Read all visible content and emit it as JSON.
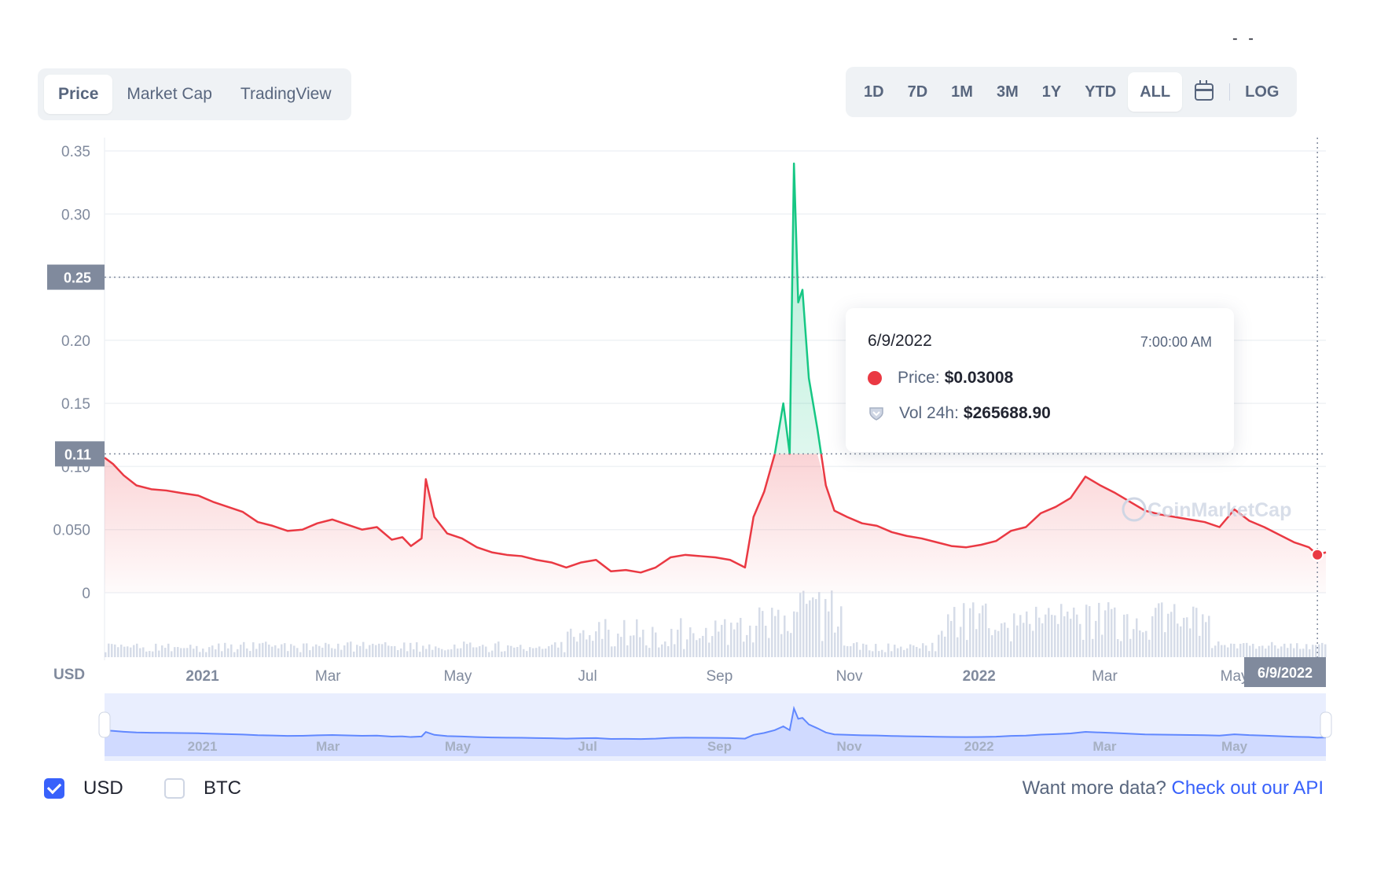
{
  "tabs_left": [
    {
      "label": "Price",
      "active": true
    },
    {
      "label": "Market Cap",
      "active": false
    },
    {
      "label": "TradingView",
      "active": false
    }
  ],
  "tabs_right": [
    {
      "label": "1D"
    },
    {
      "label": "7D"
    },
    {
      "label": "1M"
    },
    {
      "label": "3M"
    },
    {
      "label": "1Y"
    },
    {
      "label": "YTD"
    },
    {
      "label": "ALL",
      "active": true
    }
  ],
  "calendar_icon": "calendar-icon",
  "log_label": "LOG",
  "top_right_text": "- -",
  "tooltip": {
    "date": "6/9/2022",
    "time": "7:00:00 AM",
    "price_label": "Price:",
    "price_value": "$0.03008",
    "vol_label": "Vol 24h:",
    "vol_value": "$265688.90"
  },
  "watermark": "CoinMarketCap",
  "currency_toggle": {
    "usd": "USD",
    "btc": "BTC",
    "usd_checked": true,
    "btc_checked": false
  },
  "api": {
    "text": "Want more data?",
    "link": "Check out our API"
  },
  "colors": {
    "up": "#16c784",
    "down": "#ea3943",
    "accent": "#3861fb",
    "navigator": "#6188ff"
  },
  "chart_data": {
    "type": "line",
    "y_unit_label": "USD",
    "y_ticks": [
      "0.35",
      "0.30",
      "0.25",
      "0.20",
      "0.15",
      "0.10",
      "0.050",
      "0"
    ],
    "ylim": [
      0,
      0.35
    ],
    "x_ticks": [
      "2021",
      "Mar",
      "May",
      "Jul",
      "Sep",
      "Nov",
      "2022",
      "Mar",
      "May"
    ],
    "x_range": [
      "2020-11-16",
      "2022-06-13"
    ],
    "crosshair": {
      "price": "0.25",
      "date": "6/9/2022"
    },
    "reference_line": {
      "price": "0.11"
    },
    "series": [
      {
        "x": [
          "2020-11-16",
          "2020-11-20",
          "2020-11-25",
          "2020-12-01",
          "2020-12-08",
          "2020-12-15",
          "2020-12-22",
          "2020-12-30",
          "2021-01-06",
          "2021-01-13",
          "2021-01-20",
          "2021-01-27",
          "2021-02-03",
          "2021-02-10",
          "2021-02-17",
          "2021-02-24",
          "2021-03-03",
          "2021-03-10",
          "2021-03-17",
          "2021-03-24",
          "2021-03-31",
          "2021-04-05",
          "2021-04-09",
          "2021-04-14",
          "2021-04-16",
          "2021-04-20",
          "2021-04-26",
          "2021-05-03",
          "2021-05-10",
          "2021-05-17",
          "2021-05-24",
          "2021-05-31",
          "2021-06-07",
          "2021-06-14",
          "2021-06-21",
          "2021-06-28",
          "2021-07-05",
          "2021-07-12",
          "2021-07-19",
          "2021-07-26",
          "2021-08-02",
          "2021-08-09",
          "2021-08-16",
          "2021-08-23",
          "2021-08-30",
          "2021-09-06",
          "2021-09-13",
          "2021-09-17",
          "2021-09-22",
          "2021-09-27",
          "2021-10-01",
          "2021-10-04",
          "2021-10-06",
          "2021-10-08",
          "2021-10-10",
          "2021-10-13",
          "2021-10-17",
          "2021-10-21",
          "2021-10-25",
          "2021-10-31",
          "2021-11-07",
          "2021-11-14",
          "2021-11-21",
          "2021-11-28",
          "2021-12-05",
          "2021-12-12",
          "2021-12-19",
          "2021-12-26",
          "2022-01-02",
          "2022-01-09",
          "2022-01-16",
          "2022-01-23",
          "2022-01-30",
          "2022-02-06",
          "2022-02-13",
          "2022-02-20",
          "2022-02-27",
          "2022-03-06",
          "2022-03-13",
          "2022-03-20",
          "2022-03-27",
          "2022-04-03",
          "2022-04-10",
          "2022-04-17",
          "2022-04-24",
          "2022-05-01",
          "2022-05-08",
          "2022-05-15",
          "2022-05-22",
          "2022-05-29",
          "2022-06-05",
          "2022-06-09",
          "2022-06-13"
        ],
        "y": [
          0.107,
          0.102,
          0.093,
          0.085,
          0.082,
          0.081,
          0.079,
          0.077,
          0.072,
          0.068,
          0.064,
          0.056,
          0.053,
          0.049,
          0.05,
          0.055,
          0.058,
          0.054,
          0.05,
          0.052,
          0.042,
          0.044,
          0.037,
          0.043,
          0.09,
          0.06,
          0.047,
          0.043,
          0.036,
          0.032,
          0.03,
          0.029,
          0.026,
          0.024,
          0.02,
          0.024,
          0.026,
          0.017,
          0.018,
          0.016,
          0.02,
          0.028,
          0.03,
          0.029,
          0.028,
          0.026,
          0.02,
          0.06,
          0.08,
          0.11,
          0.15,
          0.11,
          0.34,
          0.23,
          0.24,
          0.17,
          0.13,
          0.085,
          0.065,
          0.06,
          0.055,
          0.053,
          0.048,
          0.045,
          0.043,
          0.04,
          0.037,
          0.036,
          0.038,
          0.041,
          0.049,
          0.052,
          0.063,
          0.068,
          0.075,
          0.092,
          0.085,
          0.079,
          0.072,
          0.065,
          0.062,
          0.06,
          0.058,
          0.056,
          0.052,
          0.066,
          0.057,
          0.052,
          0.046,
          0.04,
          0.036,
          0.03008,
          0.032
        ]
      }
    ]
  }
}
